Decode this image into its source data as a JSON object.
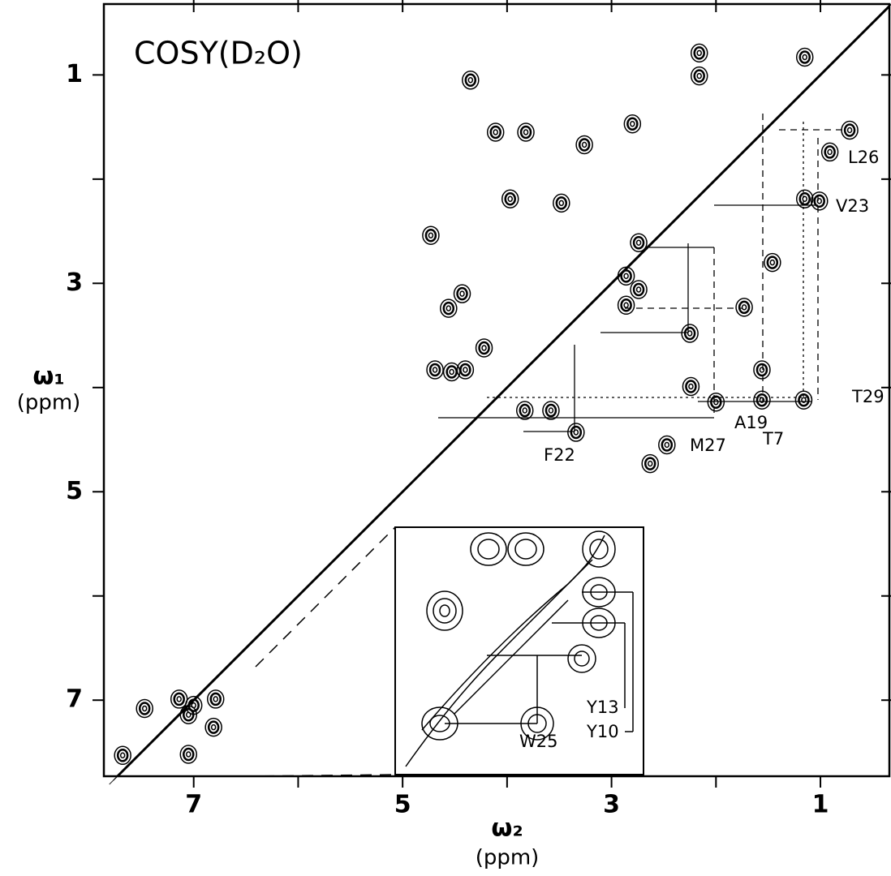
{
  "chart_data": {
    "type": "contour",
    "title": "COSY(D₂O)",
    "x_label": "ω₂",
    "x_unit": "(ppm)",
    "y_label": "ω₁",
    "y_unit": "(ppm)",
    "xlim": [
      7.86,
      0.34
    ],
    "ylim": [
      0.32,
      7.73
    ],
    "xticks": [
      7,
      5,
      3,
      1
    ],
    "yticks": [
      1,
      3,
      5,
      7
    ],
    "color": "#000000",
    "peaks": {
      "x": [
        4.35,
        4.11,
        3.82,
        2.8,
        3.26,
        3.97,
        3.48,
        4.73,
        2.74,
        2.86,
        2.74,
        4.43,
        4.56,
        4.22,
        4.69,
        4.53,
        4.4,
        2.86,
        1.73,
        2.25,
        1.46,
        1.56,
        2.24,
        1.56,
        1.16,
        2.0,
        3.58,
        3.83,
        3.34,
        2.47,
        2.63,
        1.15,
        1.01,
        2.16,
        2.16,
        1.15,
        0.72,
        0.91,
        7.47,
        7.05,
        6.81,
        7.05,
        7.68,
        7.14,
        6.79,
        7.0
      ],
      "y": [
        1.05,
        1.55,
        1.55,
        1.47,
        1.67,
        2.19,
        2.23,
        2.54,
        2.61,
        2.93,
        3.06,
        3.1,
        3.24,
        3.62,
        3.83,
        3.85,
        3.83,
        3.21,
        3.23,
        3.48,
        2.8,
        3.83,
        3.99,
        4.12,
        4.12,
        4.14,
        4.22,
        4.22,
        4.43,
        4.55,
        4.73,
        2.19,
        2.21,
        0.79,
        1.01,
        0.83,
        1.53,
        1.74,
        7.08,
        7.14,
        7.26,
        7.52,
        7.53,
        6.99,
        6.99,
        7.05
      ]
    },
    "annotations": [
      "L26",
      "V23",
      "T29",
      "A19",
      "T7",
      "M27",
      "F22",
      "Y13",
      "Y10",
      "W25"
    ]
  }
}
